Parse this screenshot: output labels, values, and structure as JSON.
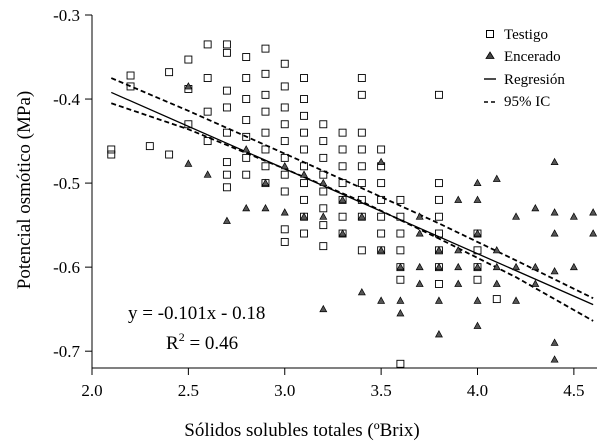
{
  "chart_data": {
    "type": "scatter",
    "xlabel": "Sólidos solubles totales (ºBrix)",
    "ylabel": "Potencial osmótico (MPa)",
    "xlim": [
      2.0,
      4.62
    ],
    "ylim": [
      -0.72,
      -0.3
    ],
    "x_ticks": [
      "2.0",
      "2.5",
      "3.0",
      "3.5",
      "4.0",
      "4.5"
    ],
    "x_tick_values": [
      2.0,
      2.5,
      3.0,
      3.5,
      4.0,
      4.5
    ],
    "y_ticks": [
      "-0.3",
      "-0.4",
      "-0.5",
      "-0.6",
      "-0.7"
    ],
    "y_tick_values": [
      -0.3,
      -0.4,
      -0.5,
      -0.6,
      -0.7
    ],
    "grid": false,
    "legend_position": "top-right",
    "legend": {
      "testigo": "Testigo",
      "encerado": "Encerado",
      "regresion": "Regresión",
      "ic": "95% IC"
    },
    "annotation": {
      "equation": "y = -0.101x - 0.18",
      "r2_prefix": "R",
      "r2_exp": "2",
      "r2_value": " = 0.46"
    },
    "regression": {
      "name": "Regresión",
      "slope": -0.101,
      "intercept": -0.18,
      "x_range": [
        2.1,
        4.6
      ]
    },
    "confidence_band": {
      "name": "95% IC",
      "upper": [
        [
          2.1,
          -0.375
        ],
        [
          2.5,
          -0.414
        ],
        [
          3.0,
          -0.465
        ],
        [
          3.4,
          -0.506
        ],
        [
          3.8,
          -0.548
        ],
        [
          4.2,
          -0.592
        ],
        [
          4.6,
          -0.637
        ]
      ],
      "lower": [
        [
          2.1,
          -0.405
        ],
        [
          2.5,
          -0.436
        ],
        [
          3.0,
          -0.483
        ],
        [
          3.4,
          -0.522
        ],
        [
          3.8,
          -0.566
        ],
        [
          4.2,
          -0.612
        ],
        [
          4.6,
          -0.664
        ]
      ]
    },
    "series": [
      {
        "name": "Testigo",
        "marker": "open-square",
        "points": [
          [
            2.1,
            -0.46
          ],
          [
            2.1,
            -0.466
          ],
          [
            2.2,
            -0.372
          ],
          [
            2.2,
            -0.385
          ],
          [
            2.3,
            -0.456
          ],
          [
            2.4,
            -0.368
          ],
          [
            2.4,
            -0.466
          ],
          [
            2.5,
            -0.353
          ],
          [
            2.5,
            -0.388
          ],
          [
            2.5,
            -0.43
          ],
          [
            2.6,
            -0.335
          ],
          [
            2.6,
            -0.375
          ],
          [
            2.6,
            -0.415
          ],
          [
            2.6,
            -0.45
          ],
          [
            2.7,
            -0.335
          ],
          [
            2.7,
            -0.345
          ],
          [
            2.7,
            -0.39
          ],
          [
            2.7,
            -0.41
          ],
          [
            2.7,
            -0.44
          ],
          [
            2.7,
            -0.475
          ],
          [
            2.7,
            -0.49
          ],
          [
            2.7,
            -0.505
          ],
          [
            2.8,
            -0.35
          ],
          [
            2.8,
            -0.375
          ],
          [
            2.8,
            -0.4
          ],
          [
            2.8,
            -0.425
          ],
          [
            2.8,
            -0.445
          ],
          [
            2.8,
            -0.47
          ],
          [
            2.8,
            -0.49
          ],
          [
            2.9,
            -0.34
          ],
          [
            2.9,
            -0.37
          ],
          [
            2.9,
            -0.395
          ],
          [
            2.9,
            -0.415
          ],
          [
            2.9,
            -0.44
          ],
          [
            2.9,
            -0.46
          ],
          [
            2.9,
            -0.48
          ],
          [
            2.9,
            -0.5
          ],
          [
            3.0,
            -0.358
          ],
          [
            3.0,
            -0.385
          ],
          [
            3.0,
            -0.41
          ],
          [
            3.0,
            -0.43
          ],
          [
            3.0,
            -0.45
          ],
          [
            3.0,
            -0.47
          ],
          [
            3.0,
            -0.49
          ],
          [
            3.0,
            -0.51
          ],
          [
            3.0,
            -0.555
          ],
          [
            3.0,
            -0.57
          ],
          [
            3.1,
            -0.375
          ],
          [
            3.1,
            -0.4
          ],
          [
            3.1,
            -0.42
          ],
          [
            3.1,
            -0.44
          ],
          [
            3.1,
            -0.46
          ],
          [
            3.1,
            -0.48
          ],
          [
            3.1,
            -0.5
          ],
          [
            3.1,
            -0.52
          ],
          [
            3.1,
            -0.54
          ],
          [
            3.1,
            -0.56
          ],
          [
            3.2,
            -0.43
          ],
          [
            3.2,
            -0.45
          ],
          [
            3.2,
            -0.47
          ],
          [
            3.2,
            -0.49
          ],
          [
            3.2,
            -0.51
          ],
          [
            3.2,
            -0.53
          ],
          [
            3.2,
            -0.55
          ],
          [
            3.2,
            -0.575
          ],
          [
            3.3,
            -0.44
          ],
          [
            3.3,
            -0.46
          ],
          [
            3.3,
            -0.48
          ],
          [
            3.3,
            -0.5
          ],
          [
            3.3,
            -0.52
          ],
          [
            3.3,
            -0.54
          ],
          [
            3.3,
            -0.56
          ],
          [
            3.4,
            -0.375
          ],
          [
            3.4,
            -0.395
          ],
          [
            3.4,
            -0.44
          ],
          [
            3.4,
            -0.46
          ],
          [
            3.4,
            -0.48
          ],
          [
            3.4,
            -0.5
          ],
          [
            3.4,
            -0.52
          ],
          [
            3.4,
            -0.54
          ],
          [
            3.4,
            -0.58
          ],
          [
            3.5,
            -0.46
          ],
          [
            3.5,
            -0.48
          ],
          [
            3.5,
            -0.5
          ],
          [
            3.5,
            -0.52
          ],
          [
            3.5,
            -0.54
          ],
          [
            3.5,
            -0.56
          ],
          [
            3.5,
            -0.58
          ],
          [
            3.6,
            -0.52
          ],
          [
            3.6,
            -0.54
          ],
          [
            3.6,
            -0.56
          ],
          [
            3.6,
            -0.58
          ],
          [
            3.6,
            -0.6
          ],
          [
            3.6,
            -0.615
          ],
          [
            3.6,
            -0.715
          ],
          [
            3.8,
            -0.395
          ],
          [
            3.8,
            -0.5
          ],
          [
            3.8,
            -0.52
          ],
          [
            3.8,
            -0.54
          ],
          [
            3.8,
            -0.56
          ],
          [
            3.8,
            -0.58
          ],
          [
            3.8,
            -0.6
          ],
          [
            3.8,
            -0.62
          ],
          [
            4.0,
            -0.56
          ],
          [
            4.0,
            -0.58
          ],
          [
            4.0,
            -0.6
          ],
          [
            4.0,
            -0.615
          ],
          [
            4.1,
            -0.638
          ]
        ]
      },
      {
        "name": "Encerado",
        "marker": "filled-triangle",
        "points": [
          [
            2.5,
            -0.385
          ],
          [
            2.5,
            -0.477
          ],
          [
            2.6,
            -0.49
          ],
          [
            2.7,
            -0.545
          ],
          [
            2.8,
            -0.46
          ],
          [
            2.8,
            -0.53
          ],
          [
            2.9,
            -0.53
          ],
          [
            2.9,
            -0.5
          ],
          [
            3.0,
            -0.48
          ],
          [
            3.0,
            -0.535
          ],
          [
            3.1,
            -0.49
          ],
          [
            3.1,
            -0.54
          ],
          [
            3.2,
            -0.5
          ],
          [
            3.2,
            -0.54
          ],
          [
            3.2,
            -0.65
          ],
          [
            3.3,
            -0.52
          ],
          [
            3.3,
            -0.56
          ],
          [
            3.4,
            -0.54
          ],
          [
            3.4,
            -0.63
          ],
          [
            3.5,
            -0.58
          ],
          [
            3.5,
            -0.64
          ],
          [
            3.5,
            -0.475
          ],
          [
            3.6,
            -0.6
          ],
          [
            3.6,
            -0.64
          ],
          [
            3.6,
            -0.655
          ],
          [
            3.7,
            -0.54
          ],
          [
            3.7,
            -0.56
          ],
          [
            3.7,
            -0.6
          ],
          [
            3.7,
            -0.62
          ],
          [
            3.8,
            -0.58
          ],
          [
            3.8,
            -0.6
          ],
          [
            3.8,
            -0.64
          ],
          [
            3.8,
            -0.68
          ],
          [
            3.9,
            -0.52
          ],
          [
            3.9,
            -0.58
          ],
          [
            3.9,
            -0.6
          ],
          [
            3.9,
            -0.62
          ],
          [
            4.0,
            -0.5
          ],
          [
            4.0,
            -0.52
          ],
          [
            4.0,
            -0.56
          ],
          [
            4.0,
            -0.6
          ],
          [
            4.0,
            -0.64
          ],
          [
            4.0,
            -0.67
          ],
          [
            4.1,
            -0.495
          ],
          [
            4.1,
            -0.58
          ],
          [
            4.1,
            -0.6
          ],
          [
            4.1,
            -0.62
          ],
          [
            4.2,
            -0.54
          ],
          [
            4.2,
            -0.6
          ],
          [
            4.2,
            -0.64
          ],
          [
            4.3,
            -0.53
          ],
          [
            4.3,
            -0.6
          ],
          [
            4.3,
            -0.62
          ],
          [
            4.4,
            -0.475
          ],
          [
            4.4,
            -0.535
          ],
          [
            4.4,
            -0.56
          ],
          [
            4.4,
            -0.605
          ],
          [
            4.4,
            -0.69
          ],
          [
            4.4,
            -0.71
          ],
          [
            4.5,
            -0.54
          ],
          [
            4.5,
            -0.6
          ],
          [
            4.6,
            -0.535
          ],
          [
            4.6,
            -0.56
          ]
        ]
      }
    ]
  }
}
